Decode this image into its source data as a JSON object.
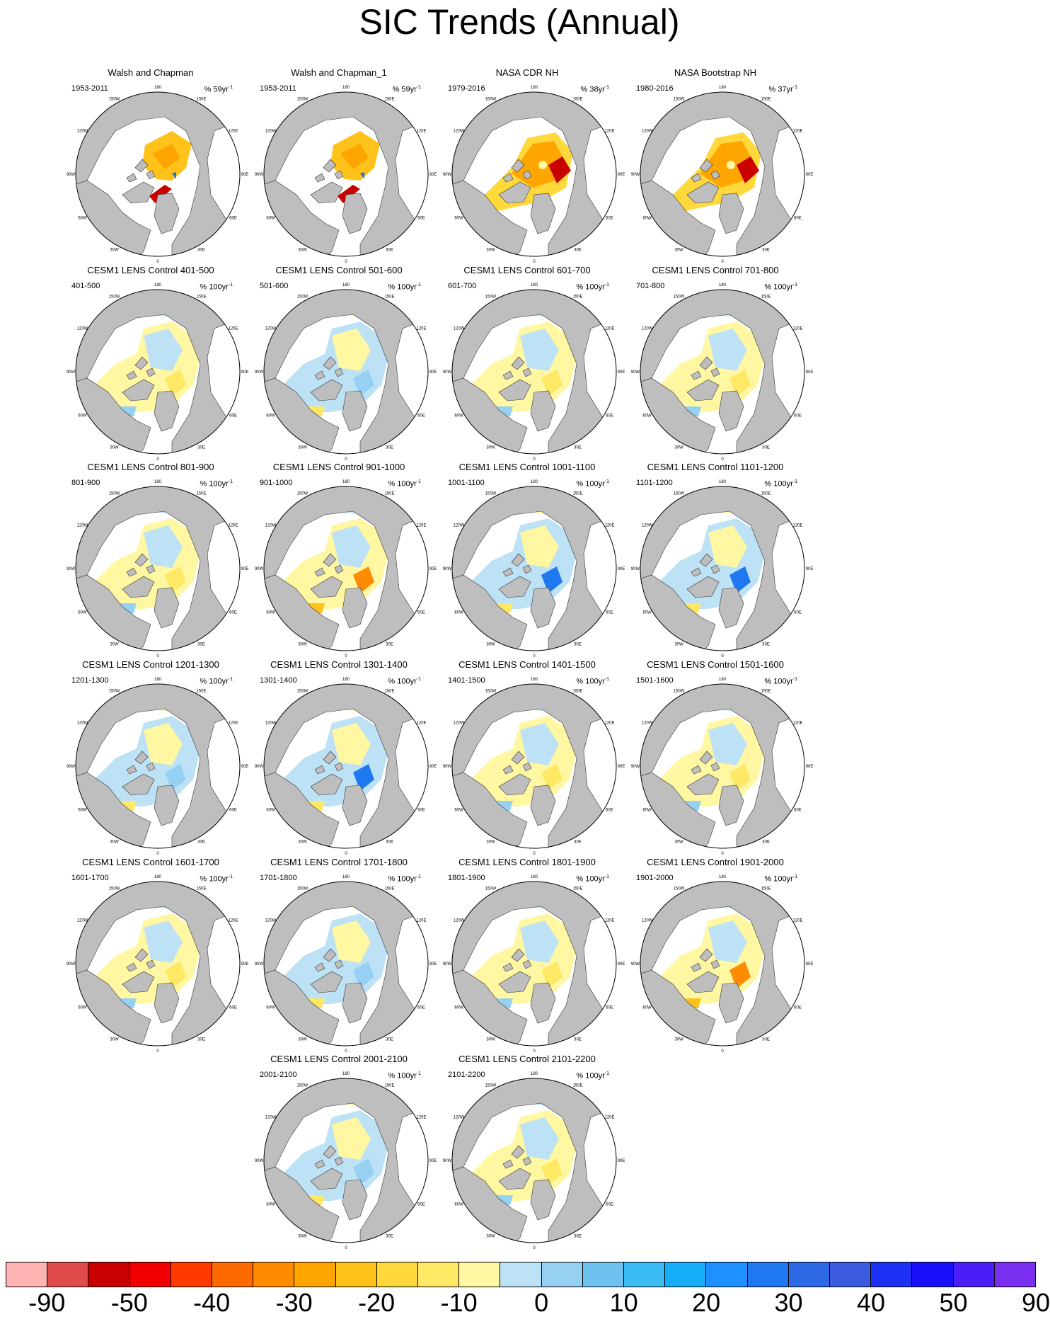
{
  "title": "SIC Trends (Annual)",
  "lon_labels": [
    "180",
    "150E",
    "120E",
    "90E",
    "60E",
    "30E",
    "0",
    "30W",
    "60W",
    "90W",
    "120W",
    "150W"
  ],
  "panels": [
    {
      "title": "Walsh and Chapman",
      "period": "1953-2011",
      "units_prefix": "% 59yr",
      "units_exp": "-1",
      "pattern": "obs_wc"
    },
    {
      "title": "Walsh and Chapman_1",
      "period": "1953-2011",
      "units_prefix": "% 59yr",
      "units_exp": "-1",
      "pattern": "obs_wc"
    },
    {
      "title": "NASA CDR NH",
      "period": "1979-2016",
      "units_prefix": "% 38yr",
      "units_exp": "-1",
      "pattern": "obs_sat"
    },
    {
      "title": "NASA Bootstrap NH",
      "period": "1980-2016",
      "units_prefix": "% 37yr",
      "units_exp": "-1",
      "pattern": "obs_sat"
    },
    {
      "title": "CESM1 LENS Control 401-500",
      "period": "401-500",
      "units_prefix": "% 100yr",
      "units_exp": "-1",
      "pattern": "yellow"
    },
    {
      "title": "CESM1 LENS Control 501-600",
      "period": "501-600",
      "units_prefix": "% 100yr",
      "units_exp": "-1",
      "pattern": "blue"
    },
    {
      "title": "CESM1 LENS Control 601-700",
      "period": "601-700",
      "units_prefix": "% 100yr",
      "units_exp": "-1",
      "pattern": "yellow"
    },
    {
      "title": "CESM1 LENS Control 701-800",
      "period": "701-800",
      "units_prefix": "% 100yr",
      "units_exp": "-1",
      "pattern": "mixed"
    },
    {
      "title": "CESM1 LENS Control 801-900",
      "period": "801-900",
      "units_prefix": "% 100yr",
      "units_exp": "-1",
      "pattern": "mixed"
    },
    {
      "title": "CESM1 LENS Control 901-1000",
      "period": "901-1000",
      "units_prefix": "% 100yr",
      "units_exp": "-1",
      "pattern": "orange"
    },
    {
      "title": "CESM1 LENS Control 1001-1100",
      "period": "1001-1100",
      "units_prefix": "% 100yr",
      "units_exp": "-1",
      "pattern": "blue_strong"
    },
    {
      "title": "CESM1 LENS Control 1101-1200",
      "period": "1101-1200",
      "units_prefix": "% 100yr",
      "units_exp": "-1",
      "pattern": "blue_strong"
    },
    {
      "title": "CESM1 LENS Control 1201-1300",
      "period": "1201-1300",
      "units_prefix": "% 100yr",
      "units_exp": "-1",
      "pattern": "blue"
    },
    {
      "title": "CESM1 LENS Control 1301-1400",
      "period": "1301-1400",
      "units_prefix": "% 100yr",
      "units_exp": "-1",
      "pattern": "blue_strong"
    },
    {
      "title": "CESM1 LENS Control 1401-1500",
      "period": "1401-1500",
      "units_prefix": "% 100yr",
      "units_exp": "-1",
      "pattern": "yellow"
    },
    {
      "title": "CESM1 LENS Control 1501-1600",
      "period": "1501-1600",
      "units_prefix": "% 100yr",
      "units_exp": "-1",
      "pattern": "yellow"
    },
    {
      "title": "CESM1 LENS Control 1601-1700",
      "period": "1601-1700",
      "units_prefix": "% 100yr",
      "units_exp": "-1",
      "pattern": "yellow"
    },
    {
      "title": "CESM1 LENS Control 1701-1800",
      "period": "1701-1800",
      "units_prefix": "% 100yr",
      "units_exp": "-1",
      "pattern": "blue"
    },
    {
      "title": "CESM1 LENS Control 1801-1900",
      "period": "1801-1900",
      "units_prefix": "% 100yr",
      "units_exp": "-1",
      "pattern": "yellow"
    },
    {
      "title": "CESM1 LENS Control 1901-2000",
      "period": "1901-2000",
      "units_prefix": "% 100yr",
      "units_exp": "-1",
      "pattern": "orange"
    },
    {
      "title": "CESM1 LENS Control 2001-2100",
      "period": "2001-2100",
      "units_prefix": "% 100yr",
      "units_exp": "-1",
      "pattern": "blue"
    },
    {
      "title": "CESM1 LENS Control 2101-2200",
      "period": "2101-2200",
      "units_prefix": "% 100yr",
      "units_exp": "-1",
      "pattern": "yellow"
    }
  ],
  "colors": {
    "land": "#bebebe",
    "ocean": "#ffffff",
    "colorbar": [
      "#ffb3b3",
      "#e04b4b",
      "#c80000",
      "#f00000",
      "#ff3a00",
      "#ff6a00",
      "#ff8c00",
      "#ffa500",
      "#ffc21a",
      "#ffd83c",
      "#ffe866",
      "#fff7a1",
      "#bde2f5",
      "#96d1f3",
      "#6fc2f0",
      "#3cbcf5",
      "#16aef9",
      "#1e90ff",
      "#1f78f0",
      "#2e6ae6",
      "#3c5ce0",
      "#1d31f5",
      "#1a10fa",
      "#4a1ef7",
      "#7a2ef0"
    ]
  },
  "colorbar_labels": [
    "-90",
    "-50",
    "-40",
    "-30",
    "-20",
    "-10",
    "0",
    "10",
    "20",
    "30",
    "40",
    "50",
    "90"
  ]
}
